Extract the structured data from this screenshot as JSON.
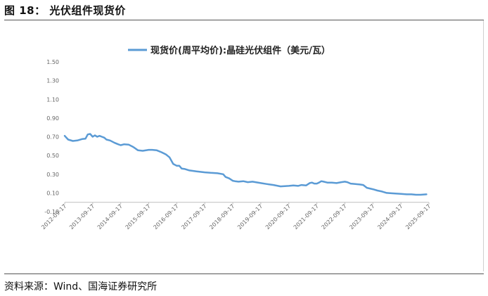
{
  "figure": {
    "title": "图 18： 光伏组件现货价",
    "source": "资料来源：Wind、国海证券研究所"
  },
  "chart_data": {
    "type": "line",
    "title": "",
    "xlabel": "",
    "ylabel": "",
    "ylim": [
      -0.1,
      1.5
    ],
    "yticks": [
      "-0.10",
      "0.10",
      "0.30",
      "0.50",
      "0.70",
      "0.90",
      "1.10",
      "1.30",
      "1.50"
    ],
    "ytick_values": [
      -0.1,
      0.1,
      0.3,
      0.5,
      0.7,
      0.9,
      1.1,
      1.3,
      1.5
    ],
    "xticks": [
      "2012-09-17",
      "2013-09-17",
      "2014-09-17",
      "2015-09-17",
      "2016-09-17",
      "2017-09-17",
      "2018-09-17",
      "2019-09-17",
      "2020-09-17",
      "2021-09-17",
      "2022-09-17",
      "2023-09-17",
      "2024-09-17",
      "2025-09-17"
    ],
    "grid": false,
    "legend_position": "top",
    "color": "#5b9bd5",
    "series": [
      {
        "name": "现货价(周平均价):晶硅光伏组件（美元/瓦）",
        "points": [
          [
            "2012-09-17",
            0.71
          ],
          [
            "2012-11-01",
            0.67
          ],
          [
            "2013-01-01",
            0.655
          ],
          [
            "2013-03-01",
            0.66
          ],
          [
            "2013-05-01",
            0.675
          ],
          [
            "2013-06-15",
            0.68
          ],
          [
            "2013-07-15",
            0.725
          ],
          [
            "2013-08-15",
            0.73
          ],
          [
            "2013-09-17",
            0.7
          ],
          [
            "2013-10-15",
            0.715
          ],
          [
            "2013-11-15",
            0.7
          ],
          [
            "2013-12-15",
            0.71
          ],
          [
            "2014-01-15",
            0.7
          ],
          [
            "2014-02-15",
            0.69
          ],
          [
            "2014-03-15",
            0.67
          ],
          [
            "2014-05-01",
            0.66
          ],
          [
            "2014-07-01",
            0.635
          ],
          [
            "2014-08-15",
            0.62
          ],
          [
            "2014-09-17",
            0.61
          ],
          [
            "2014-11-01",
            0.62
          ],
          [
            "2015-01-01",
            0.615
          ],
          [
            "2015-03-01",
            0.59
          ],
          [
            "2015-05-01",
            0.555
          ],
          [
            "2015-07-01",
            0.55
          ],
          [
            "2015-09-17",
            0.56
          ],
          [
            "2015-11-01",
            0.56
          ],
          [
            "2016-01-01",
            0.555
          ],
          [
            "2016-03-01",
            0.535
          ],
          [
            "2016-05-01",
            0.51
          ],
          [
            "2016-06-15",
            0.48
          ],
          [
            "2016-08-01",
            0.41
          ],
          [
            "2016-09-17",
            0.39
          ],
          [
            "2016-10-20",
            0.39
          ],
          [
            "2016-11-20",
            0.36
          ],
          [
            "2017-01-01",
            0.355
          ],
          [
            "2017-03-01",
            0.34
          ],
          [
            "2017-06-01",
            0.33
          ],
          [
            "2017-09-17",
            0.32
          ],
          [
            "2017-12-01",
            0.315
          ],
          [
            "2018-03-01",
            0.31
          ],
          [
            "2018-05-15",
            0.3
          ],
          [
            "2018-06-15",
            0.27
          ],
          [
            "2018-08-01",
            0.255
          ],
          [
            "2018-09-17",
            0.23
          ],
          [
            "2018-10-15",
            0.225
          ],
          [
            "2018-12-01",
            0.22
          ],
          [
            "2019-02-01",
            0.225
          ],
          [
            "2019-04-01",
            0.215
          ],
          [
            "2019-06-01",
            0.22
          ],
          [
            "2019-09-17",
            0.205
          ],
          [
            "2019-12-01",
            0.195
          ],
          [
            "2020-03-01",
            0.185
          ],
          [
            "2020-06-01",
            0.17
          ],
          [
            "2020-09-17",
            0.175
          ],
          [
            "2020-11-15",
            0.18
          ],
          [
            "2021-01-15",
            0.175
          ],
          [
            "2021-03-01",
            0.185
          ],
          [
            "2021-05-01",
            0.18
          ],
          [
            "2021-06-15",
            0.205
          ],
          [
            "2021-07-15",
            0.21
          ],
          [
            "2021-08-15",
            0.2
          ],
          [
            "2021-09-17",
            0.2
          ],
          [
            "2021-10-15",
            0.21
          ],
          [
            "2021-11-15",
            0.225
          ],
          [
            "2021-12-15",
            0.22
          ],
          [
            "2022-02-01",
            0.21
          ],
          [
            "2022-04-01",
            0.21
          ],
          [
            "2022-06-01",
            0.205
          ],
          [
            "2022-08-01",
            0.215
          ],
          [
            "2022-09-17",
            0.22
          ],
          [
            "2022-10-20",
            0.215
          ],
          [
            "2022-12-01",
            0.2
          ],
          [
            "2023-02-01",
            0.195
          ],
          [
            "2023-04-01",
            0.19
          ],
          [
            "2023-05-15",
            0.185
          ],
          [
            "2023-07-01",
            0.155
          ],
          [
            "2023-09-17",
            0.14
          ],
          [
            "2023-11-15",
            0.125
          ],
          [
            "2024-01-15",
            0.115
          ],
          [
            "2024-03-15",
            0.1
          ],
          [
            "2024-06-01",
            0.095
          ],
          [
            "2024-09-17",
            0.09
          ],
          [
            "2024-12-01",
            0.085
          ],
          [
            "2025-02-01",
            0.085
          ],
          [
            "2025-04-01",
            0.08
          ],
          [
            "2025-06-01",
            0.08
          ],
          [
            "2025-08-15",
            0.085
          ]
        ]
      }
    ]
  }
}
